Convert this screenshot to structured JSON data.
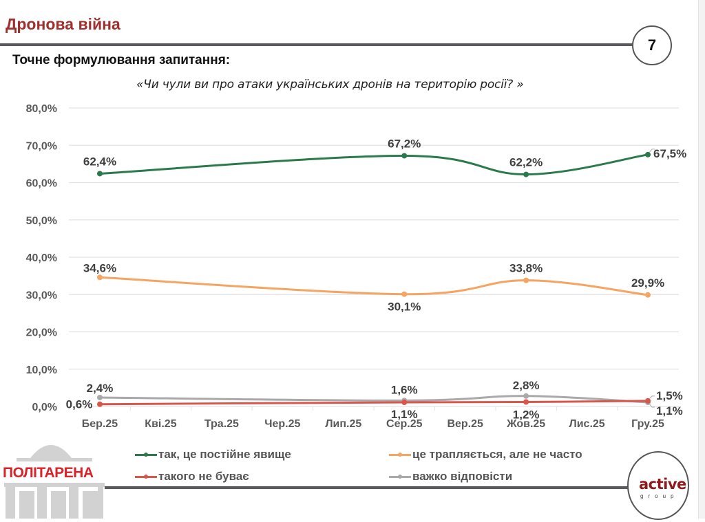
{
  "header": {
    "title": "Дронова війна",
    "page_number": "7"
  },
  "question": {
    "label": "Точне формулювання запитання:",
    "text": "«Чи чули ви про атаки українських дронів на територію росії? »"
  },
  "colors": {
    "title": "#a0302e",
    "series_constant": "#2a7a4b",
    "series_sometimes": "#f5a462",
    "series_never": "#d9574a",
    "series_hard": "#a9a9a9",
    "axis_text": "#595959",
    "grid": "#e3e3e3"
  },
  "chart_data": {
    "type": "line",
    "title": "",
    "xlabel": "",
    "ylabel": "",
    "ylim": [
      0,
      80
    ],
    "grid": true,
    "legend_position": "bottom",
    "y_ticks": [
      "0,0%",
      "10,0%",
      "20,0%",
      "30,0%",
      "40,0%",
      "50,0%",
      "60,0%",
      "70,0%",
      "80,0%"
    ],
    "categories": [
      "Бер.25",
      "Кві.25",
      "Тра.25",
      "Чер.25",
      "Лип.25",
      "Сер.25",
      "Вер.25",
      "Жов.25",
      "Лис.25",
      "Гру.25"
    ],
    "series": [
      {
        "name": "так, це постійне явище",
        "key": "series_constant",
        "points": [
          {
            "category": "Бер.25",
            "value": 62.4,
            "label": "62,4%"
          },
          {
            "category": "Сер.25",
            "value": 67.2,
            "label": "67,2%"
          },
          {
            "category": "Жов.25",
            "value": 62.2,
            "label": "62,2%"
          },
          {
            "category": "Гру.25",
            "value": 67.5,
            "label": "67,5%"
          }
        ]
      },
      {
        "name": "це трапляється, але не часто",
        "key": "series_sometimes",
        "points": [
          {
            "category": "Бер.25",
            "value": 34.6,
            "label": "34,6%"
          },
          {
            "category": "Сер.25",
            "value": 30.1,
            "label": "30,1%"
          },
          {
            "category": "Жов.25",
            "value": 33.8,
            "label": "33,8%"
          },
          {
            "category": "Гру.25",
            "value": 29.9,
            "label": "29,9%"
          }
        ]
      },
      {
        "name": "такого не буває",
        "key": "series_never",
        "points": [
          {
            "category": "Бер.25",
            "value": 0.6,
            "label": "0,6%"
          },
          {
            "category": "Сер.25",
            "value": 1.1,
            "label": "1,1%"
          },
          {
            "category": "Жов.25",
            "value": 1.2,
            "label": "1,2%"
          },
          {
            "category": "Гру.25",
            "value": 1.5,
            "label": "1,5%"
          }
        ]
      },
      {
        "name": "важко відповісти",
        "key": "series_hard",
        "points": [
          {
            "category": "Бер.25",
            "value": 2.4,
            "label": "2,4%"
          },
          {
            "category": "Сер.25",
            "value": 1.6,
            "label": "1,6%"
          },
          {
            "category": "Жов.25",
            "value": 2.8,
            "label": "2,8%"
          },
          {
            "category": "Гру.25",
            "value": 1.1,
            "label": "1,1%"
          }
        ]
      }
    ]
  },
  "logos": {
    "left": "ПОЛІТАРЕНА",
    "right_main": "active",
    "right_sub": "group"
  }
}
